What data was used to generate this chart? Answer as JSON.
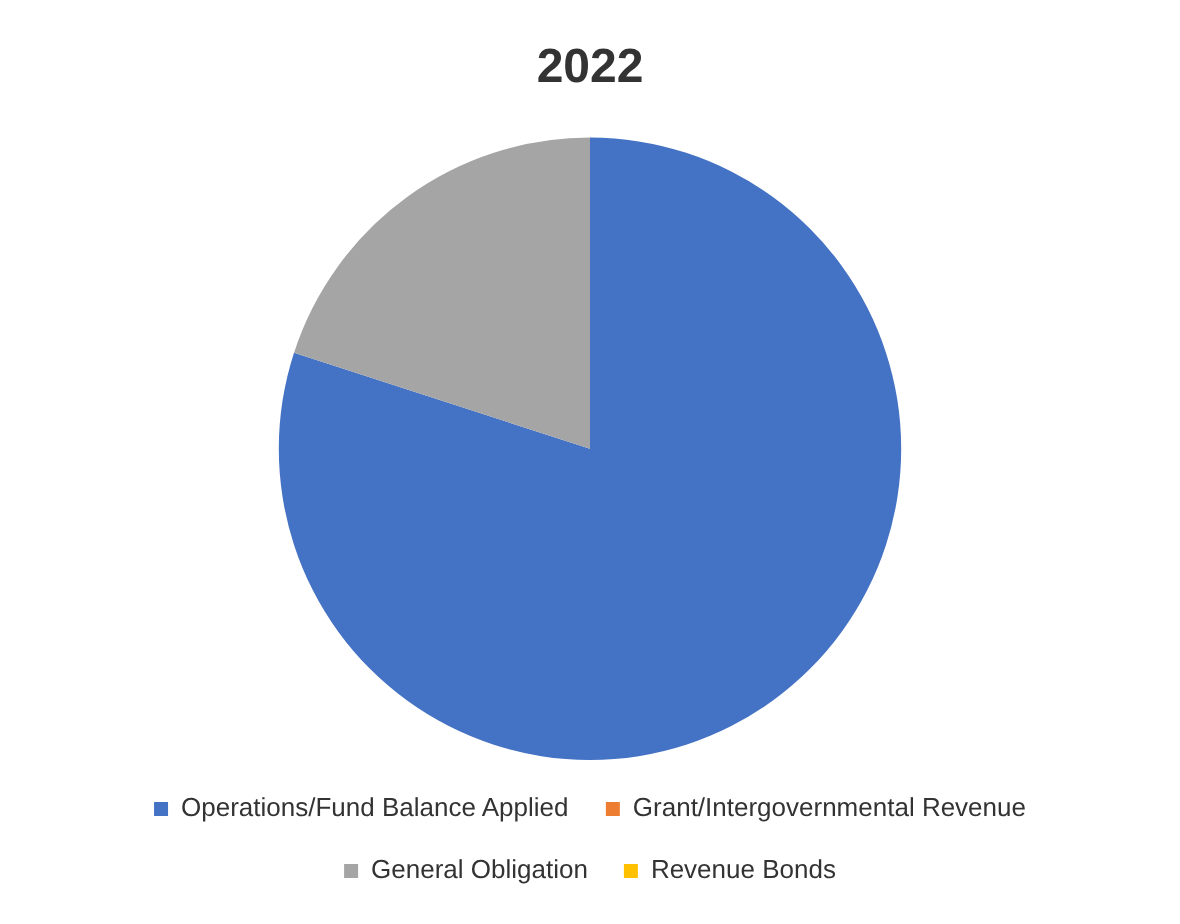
{
  "chart_data": {
    "type": "pie",
    "title": "2022",
    "categories": [
      "Operations/Fund Balance Applied",
      "Grant/Intergovernmental Revenue",
      "General Obligation",
      "Revenue Bonds"
    ],
    "values": [
      80,
      0,
      20,
      0
    ],
    "colors": [
      "#4472c4",
      "#ed7d31",
      "#a5a5a5",
      "#ffc000"
    ],
    "legend": "bottom"
  }
}
